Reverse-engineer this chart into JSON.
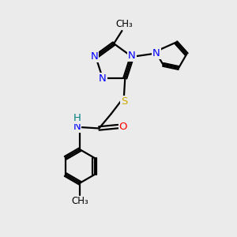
{
  "background_color": "#ebebeb",
  "atom_colors": {
    "N": "#0000FF",
    "S": "#ccaa00",
    "O": "#FF0000",
    "C": "#000000",
    "H": "#008080"
  },
  "bond_color": "#000000",
  "figsize": [
    3.0,
    3.0
  ],
  "dpi": 100
}
